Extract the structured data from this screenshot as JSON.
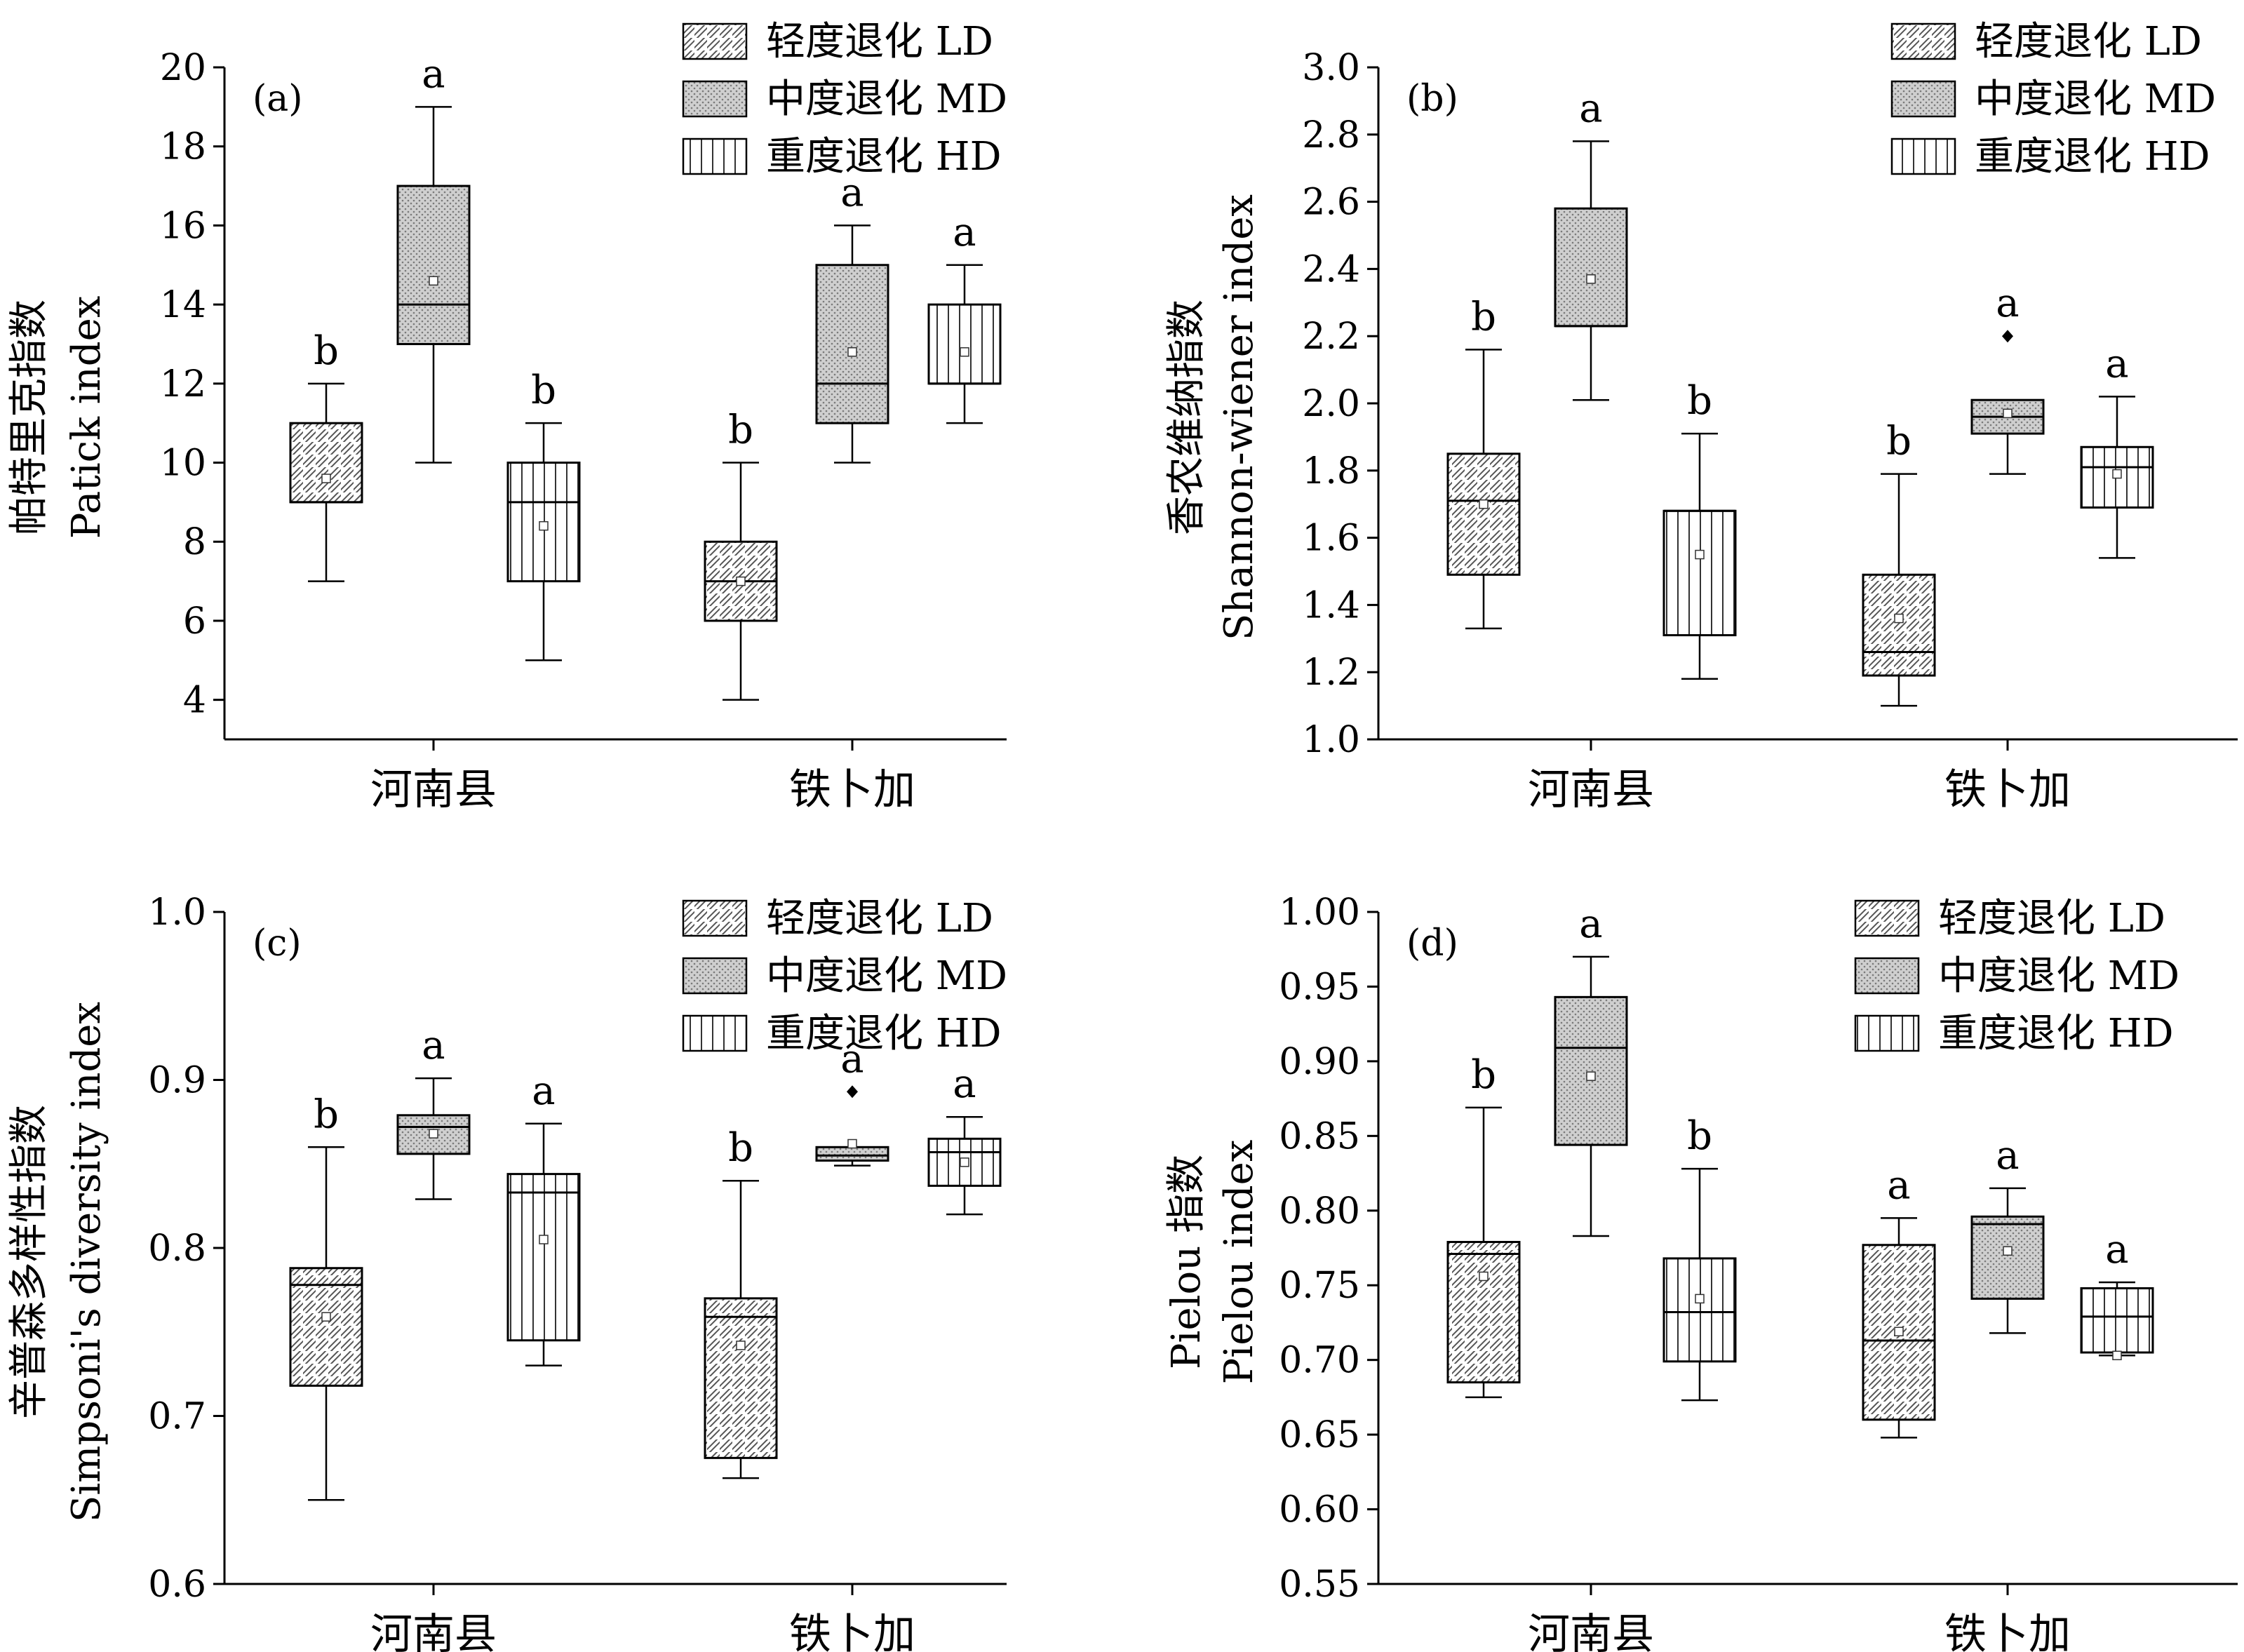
{
  "legend": [
    {
      "label": "轻度退化 LD",
      "pattern": "diag"
    },
    {
      "label": "中度退化 MD",
      "pattern": "dot"
    },
    {
      "label": "重度退化 HD",
      "pattern": "vert"
    }
  ],
  "chart_data": [
    {
      "type": "box",
      "panel": "(a)",
      "ylabel_cn": "帕特里克指数",
      "ylabel_en": "Patick index",
      "ylim": [
        3,
        20
      ],
      "yticks": [
        4,
        6,
        8,
        10,
        12,
        14,
        16,
        18,
        20
      ],
      "tick_format": 0,
      "categories": [
        "河南县",
        "铁卜加"
      ],
      "groups": [
        [
          {
            "series": "轻度退化 LD",
            "min": 7,
            "q1": 9,
            "median": 9,
            "q3": 11,
            "max": 12,
            "mean": 9.6,
            "sig": "b"
          },
          {
            "series": "中度退化 MD",
            "min": 10,
            "q1": 13,
            "median": 14,
            "q3": 17,
            "max": 19,
            "mean": 14.6,
            "sig": "a"
          },
          {
            "series": "重度退化 HD",
            "min": 5,
            "q1": 7,
            "median": 9,
            "q3": 10,
            "max": 11,
            "mean": 8.4,
            "sig": "b"
          }
        ],
        [
          {
            "series": "轻度退化 LD",
            "min": 4,
            "q1": 6,
            "median": 7,
            "q3": 8,
            "max": 10,
            "mean": 7.0,
            "sig": "b"
          },
          {
            "series": "中度退化 MD",
            "min": 10,
            "q1": 11,
            "median": 12,
            "q3": 15,
            "max": 16,
            "mean": 12.8,
            "sig": "a"
          },
          {
            "series": "重度退化 HD",
            "min": 11,
            "q1": 12,
            "median": 12,
            "q3": 14,
            "max": 15,
            "mean": 12.8,
            "sig": "a"
          }
        ]
      ]
    },
    {
      "type": "box",
      "panel": "(b)",
      "ylabel_cn": "香农维纳指数",
      "ylabel_en": "Shannon-wiener index",
      "ylim": [
        1.0,
        3.0
      ],
      "yticks": [
        1.0,
        1.2,
        1.4,
        1.6,
        1.8,
        2.0,
        2.2,
        2.4,
        2.6,
        2.8,
        3.0
      ],
      "tick_format": 1,
      "categories": [
        "河南县",
        "铁卜加"
      ],
      "groups": [
        [
          {
            "series": "轻度退化 LD",
            "min": 1.33,
            "q1": 1.49,
            "median": 1.71,
            "q3": 1.85,
            "max": 2.16,
            "mean": 1.7,
            "sig": "b"
          },
          {
            "series": "中度退化 MD",
            "min": 2.01,
            "q1": 2.23,
            "median": 2.23,
            "q3": 2.58,
            "max": 2.78,
            "mean": 2.37,
            "sig": "a"
          },
          {
            "series": "重度退化 HD",
            "min": 1.18,
            "q1": 1.31,
            "median": 1.68,
            "q3": 1.68,
            "max": 1.91,
            "mean": 1.55,
            "sig": "b"
          }
        ],
        [
          {
            "series": "轻度退化 LD",
            "min": 1.1,
            "q1": 1.19,
            "median": 1.26,
            "q3": 1.49,
            "max": 1.79,
            "mean": 1.36,
            "sig": "b"
          },
          {
            "series": "中度退化 MD",
            "min": 1.79,
            "q1": 1.91,
            "median": 1.96,
            "q3": 2.01,
            "max": 2.01,
            "mean": 1.97,
            "outliers": [
              2.2
            ],
            "sig": "a"
          },
          {
            "series": "重度退化 HD",
            "min": 1.54,
            "q1": 1.69,
            "median": 1.81,
            "q3": 1.87,
            "max": 2.02,
            "mean": 1.79,
            "sig": "a"
          }
        ]
      ]
    },
    {
      "type": "box",
      "panel": "(c)",
      "ylabel_cn": "辛普森多样性指数",
      "ylabel_en": "Simpsoni's diversity index",
      "ylim": [
        0.6,
        1.0
      ],
      "yticks": [
        0.6,
        0.7,
        0.8,
        0.9,
        1.0
      ],
      "tick_format": 1,
      "categories": [
        "河南县",
        "铁卜加"
      ],
      "groups": [
        [
          {
            "series": "轻度退化 LD",
            "min": 0.65,
            "q1": 0.718,
            "median": 0.778,
            "q3": 0.788,
            "max": 0.86,
            "mean": 0.759,
            "sig": "b"
          },
          {
            "series": "中度退化 MD",
            "min": 0.829,
            "q1": 0.856,
            "median": 0.872,
            "q3": 0.879,
            "max": 0.901,
            "mean": 0.868,
            "sig": "a"
          },
          {
            "series": "重度退化 HD",
            "min": 0.73,
            "q1": 0.745,
            "median": 0.833,
            "q3": 0.844,
            "max": 0.874,
            "mean": 0.805,
            "sig": "a"
          }
        ],
        [
          {
            "series": "轻度退化 LD",
            "min": 0.663,
            "q1": 0.675,
            "median": 0.759,
            "q3": 0.77,
            "max": 0.84,
            "mean": 0.742,
            "sig": "b"
          },
          {
            "series": "中度退化 MD",
            "min": 0.849,
            "q1": 0.852,
            "median": 0.855,
            "q3": 0.86,
            "max": 0.86,
            "mean": 0.862,
            "outliers": [
              0.893
            ],
            "sig": "a"
          },
          {
            "series": "重度退化 HD",
            "min": 0.82,
            "q1": 0.837,
            "median": 0.857,
            "q3": 0.865,
            "max": 0.878,
            "mean": 0.851,
            "sig": "a"
          }
        ]
      ]
    },
    {
      "type": "box",
      "panel": "(d)",
      "ylabel_cn": "Pielou 指数",
      "ylabel_en": "Pielou index",
      "ylim": [
        0.55,
        1.0
      ],
      "yticks": [
        0.55,
        0.6,
        0.65,
        0.7,
        0.75,
        0.8,
        0.85,
        0.9,
        0.95,
        1.0
      ],
      "tick_format": 2,
      "categories": [
        "河南县",
        "铁卜加"
      ],
      "groups": [
        [
          {
            "series": "轻度退化 LD",
            "min": 0.675,
            "q1": 0.685,
            "median": 0.771,
            "q3": 0.779,
            "max": 0.869,
            "mean": 0.756,
            "sig": "b"
          },
          {
            "series": "中度退化 MD",
            "min": 0.783,
            "q1": 0.844,
            "median": 0.909,
            "q3": 0.943,
            "max": 0.97,
            "mean": 0.89,
            "sig": "a"
          },
          {
            "series": "重度退化 HD",
            "min": 0.673,
            "q1": 0.699,
            "median": 0.732,
            "q3": 0.768,
            "max": 0.828,
            "mean": 0.741,
            "sig": "b"
          }
        ],
        [
          {
            "series": "轻度退化 LD",
            "min": 0.648,
            "q1": 0.66,
            "median": 0.713,
            "q3": 0.777,
            "max": 0.795,
            "mean": 0.719,
            "sig": "a"
          },
          {
            "series": "中度退化 MD",
            "min": 0.718,
            "q1": 0.741,
            "median": 0.791,
            "q3": 0.796,
            "max": 0.815,
            "mean": 0.773,
            "sig": "a"
          },
          {
            "series": "重度退化 HD",
            "min": 0.703,
            "q1": 0.705,
            "median": 0.729,
            "q3": 0.748,
            "max": 0.752,
            "mean": 0.703,
            "sig": "a"
          }
        ]
      ]
    }
  ]
}
